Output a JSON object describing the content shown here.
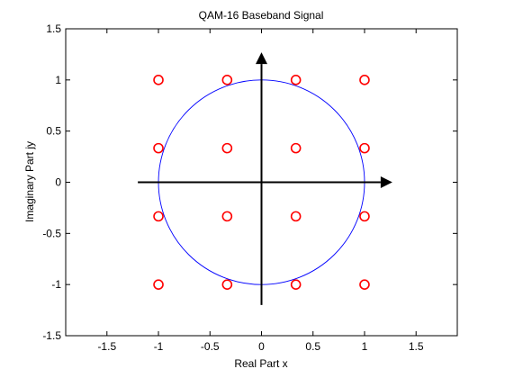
{
  "chart_data": {
    "type": "scatter",
    "title": "QAM-16 Baseband Signal",
    "xlabel": "Real Part x",
    "ylabel": "Imaginary Part jy",
    "xlim": [
      -1.9,
      1.9
    ],
    "ylim": [
      -1.5,
      1.5
    ],
    "xticks": [
      -1.5,
      -1,
      -0.5,
      0,
      0.5,
      1,
      1.5
    ],
    "xtick_labels": [
      "-1.5",
      "-1",
      "-0.5",
      "0",
      "0.5",
      "1",
      "1.5"
    ],
    "yticks": [
      -1.5,
      -1,
      -0.5,
      0,
      0.5,
      1,
      1.5
    ],
    "ytick_labels": [
      "-1.5",
      "-1",
      "-0.5",
      "0",
      "0.5",
      "1",
      "1.5"
    ],
    "grid": false,
    "series": [
      {
        "marker": "open-circle",
        "color": "#ff0000",
        "x": [
          -1,
          -0.3333,
          0.3333,
          1,
          -1,
          -0.3333,
          0.3333,
          1,
          -1,
          -0.3333,
          0.3333,
          1,
          -1,
          -0.3333,
          0.3333,
          1
        ],
        "y": [
          1,
          1,
          1,
          1,
          0.3333,
          0.3333,
          0.3333,
          0.3333,
          -0.3333,
          -0.3333,
          -0.3333,
          -0.3333,
          -1,
          -1,
          -1,
          -1
        ]
      }
    ],
    "unit_circle": {
      "center": [
        0,
        0
      ],
      "radius": 1,
      "color": "#0000ff"
    },
    "arrows": [
      {
        "from": [
          -1.2,
          0
        ],
        "to": [
          1.27,
          0
        ],
        "color": "#000000"
      },
      {
        "from": [
          0,
          -1.2
        ],
        "to": [
          0,
          1.27
        ],
        "color": "#000000"
      }
    ]
  }
}
